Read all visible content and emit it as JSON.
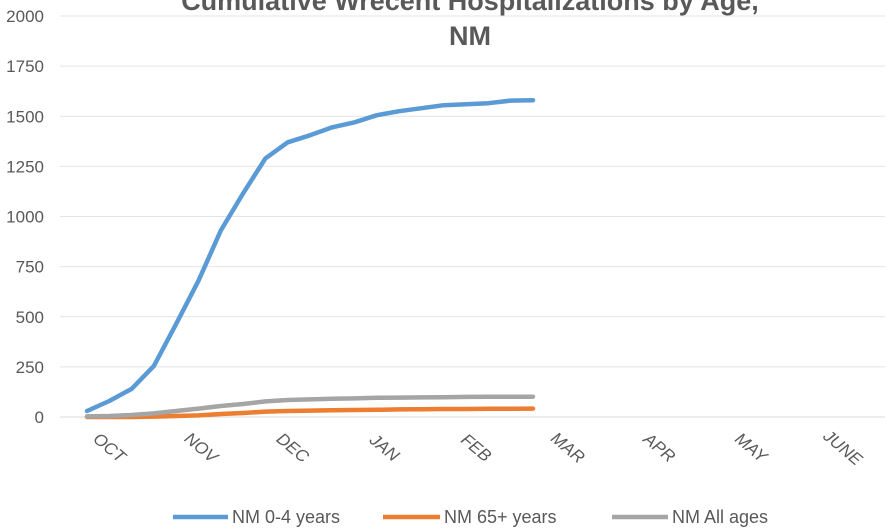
{
  "chart_data": {
    "type": "line",
    "title_lines": [
      "Cumulative Wrecent Hospitalizations by Age,",
      "NM"
    ],
    "y_ticks": [
      "0",
      "250",
      "500",
      "750",
      "1000",
      "1250",
      "1500",
      "1750",
      "2000"
    ],
    "ylim": [
      0,
      2000
    ],
    "x_tick_labels": [
      "OCT",
      "NOV",
      "DEC",
      "JAN",
      "FEB",
      "MAR",
      "APR",
      "MAY",
      "JUNE"
    ],
    "grid": true,
    "legend_position": "bottom",
    "series": [
      {
        "name": "NM 0-4 years",
        "color": "#5b9bd5",
        "values": [
          30,
          80,
          140,
          255,
          465,
          680,
          930,
          1115,
          1290,
          1370,
          1405,
          1445,
          1470,
          1505,
          1525,
          1540,
          1555,
          1560,
          1565,
          1578,
          1580
        ]
      },
      {
        "name": "NM 65+ years",
        "color": "#ed7d31",
        "values": [
          0,
          0,
          0,
          2,
          5,
          8,
          15,
          20,
          27,
          30,
          32,
          34,
          35,
          36,
          38,
          39,
          40,
          40,
          41,
          41,
          42
        ]
      },
      {
        "name": "NM All ages",
        "color": "#a5a5a5",
        "values": [
          3,
          5,
          10,
          18,
          30,
          42,
          55,
          65,
          78,
          85,
          88,
          91,
          93,
          96,
          97,
          98,
          99,
          100,
          101,
          101,
          101
        ]
      }
    ]
  }
}
